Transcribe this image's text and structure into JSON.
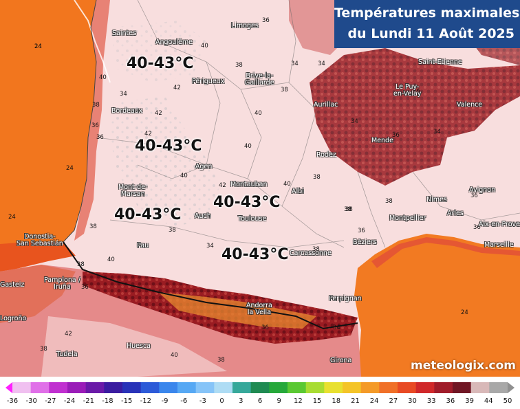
{
  "title": {
    "line1": "Températures maximales",
    "line2": "du Lundi 11 Août 2025"
  },
  "watermark": "meteologix.com",
  "zones": [
    {
      "label": "40-43°C"
    },
    {
      "label": "40-43°C"
    },
    {
      "label": "40-43°C"
    },
    {
      "label": "40-43°C"
    },
    {
      "label": "40-43°C"
    }
  ],
  "cities": [
    "Saintes",
    "Angoulême",
    "Limoges",
    "Périgueux",
    "Brive-la-\nGaillarde",
    "Bordeaux",
    "Aurillac",
    "Saint-Etienne",
    "Le Puy-\nen-Velay",
    "Valence",
    "Mende",
    "Rodez",
    "Agen",
    "Mont-de-\nMarsan",
    "Montauban",
    "Albi",
    "Nimes",
    "Avignon",
    "Auch",
    "Toulouse",
    "Montpellier",
    "Arles",
    "Aix-en-Prove",
    "Marseille",
    "Béziers",
    "Pau",
    "Carcassonne",
    "Donostia-\nSan Sebastián",
    "Gasteiz",
    "Pamplona /\nIruña",
    "Andorra\nla Vella",
    "Perpignan",
    "Logroño",
    "Huesca",
    "Tudela",
    "Girona"
  ],
  "isotherm_labels": [
    "24",
    "36",
    "40",
    "38",
    "40",
    "42",
    "34",
    "36",
    "34",
    "40",
    "42",
    "40",
    "34",
    "38",
    "42",
    "40",
    "36",
    "38",
    "38",
    "38",
    "38",
    "36",
    "36",
    "34",
    "36",
    "38",
    "40",
    "38",
    "38",
    "40",
    "42",
    "38",
    "38",
    "34",
    "36",
    "42",
    "38",
    "40",
    "38",
    "24",
    "24",
    "24",
    "24",
    "36",
    "34",
    "36",
    "34",
    "36"
  ],
  "legend": {
    "ticks": [
      "-36",
      "-30",
      "-27",
      "-24",
      "-21",
      "-18",
      "-15",
      "-12",
      "-9",
      "-6",
      "-3",
      "0",
      "3",
      "6",
      "9",
      "12",
      "15",
      "18",
      "21",
      "24",
      "27",
      "30",
      "33",
      "36",
      "39",
      "44",
      "50"
    ],
    "colors": [
      "#f0c0f0",
      "#e070e8",
      "#c030d0",
      "#9a1cb8",
      "#6a1aa8",
      "#3a1ca0",
      "#2832b8",
      "#2c5ad8",
      "#3a86ec",
      "#56a8f4",
      "#86c4f8",
      "#aedcf4",
      "#36a89a",
      "#1f8a52",
      "#26a83a",
      "#5ac832",
      "#a8dc32",
      "#e8e030",
      "#f4c428",
      "#f49a28",
      "#f07028",
      "#e84a24",
      "#d0282a",
      "#a01c2a",
      "#701624",
      "#d8b8b8",
      "#a8a8a8"
    ]
  }
}
